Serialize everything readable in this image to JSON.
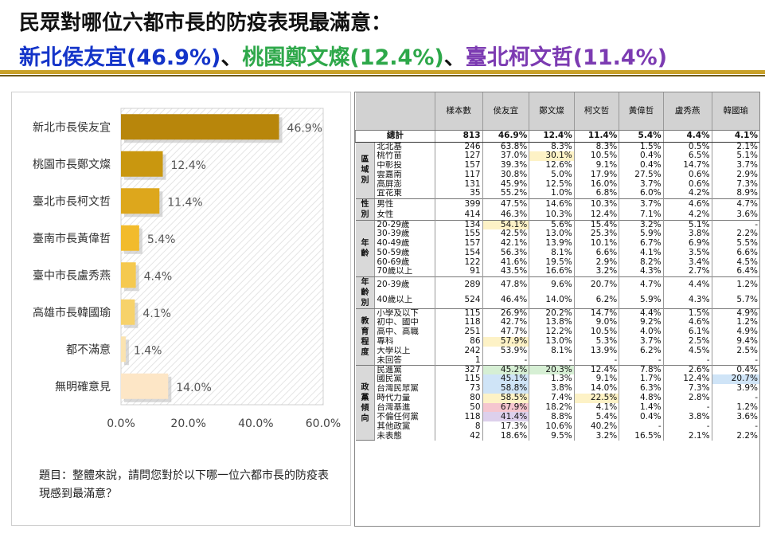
{
  "header": {
    "title_line1": "民眾對哪位六都市長的防疫表現最滿意：",
    "leader1": "新北侯友宜(46.9%)",
    "leader2": "桃園鄭文燦(12.4%)",
    "leader3": "臺北柯文哲(11.4%)",
    "separator": "、",
    "colors": {
      "leader1": "#1434c9",
      "leader2": "#2ea84a",
      "leader3": "#7c3bb2"
    }
  },
  "chart_data": {
    "type": "bar",
    "orientation": "horizontal",
    "categories": [
      "新北市長侯友宜",
      "桃園市長鄭文燦",
      "臺北市長柯文哲",
      "臺南市長黃偉哲",
      "臺中市長盧秀燕",
      "高雄市長韓國瑜",
      "都不滿意",
      "無明確意見"
    ],
    "values": [
      46.9,
      12.4,
      11.4,
      5.4,
      4.4,
      4.1,
      1.4,
      14.0
    ],
    "value_labels": [
      "46.9%",
      "12.4%",
      "11.4%",
      "5.4%",
      "4.4%",
      "4.1%",
      "1.4%",
      "14.0%"
    ],
    "bar_colors": [
      "#b8860b",
      "#c9970f",
      "#dda71c",
      "#f2bb2c",
      "#f5c94f",
      "#f7d26a",
      "#fbe3b0",
      "#fde6c6"
    ],
    "xlim": [
      0,
      60
    ],
    "xticks": [
      "0.0%",
      "20.0%",
      "40.0%",
      "60.0%"
    ],
    "grid": false
  },
  "note": "題目：整體來說，請問您對於以下哪一位六都市長的防疫表現感到最滿意？",
  "table": {
    "headers": [
      "樣本數",
      "侯友宜",
      "鄭文燦",
      "柯文哲",
      "黃偉哲",
      "盧秀燕",
      "韓國瑜"
    ],
    "total": {
      "label": "總計",
      "values": [
        "813",
        "46.9%",
        "12.4%",
        "11.4%",
        "5.4%",
        "4.4%",
        "4.1%"
      ]
    },
    "groups": [
      {
        "name": "區域別",
        "rows": [
          {
            "label": "北北基",
            "values": [
              "246",
              "63.8%",
              "8.3%",
              "8.3%",
              "1.5%",
              "0.5%",
              "2.1%"
            ]
          },
          {
            "label": "桃竹苗",
            "values": [
              "127",
              "37.0%",
              "30.1%",
              "10.5%",
              "0.4%",
              "6.5%",
              "5.1%"
            ],
            "hl": [
              null,
              null,
              "y",
              null,
              null,
              null,
              null
            ]
          },
          {
            "label": "中彰投",
            "values": [
              "157",
              "39.3%",
              "12.6%",
              "9.1%",
              "0.4%",
              "14.7%",
              "3.7%"
            ]
          },
          {
            "label": "雲嘉南",
            "values": [
              "117",
              "30.8%",
              "5.0%",
              "17.9%",
              "27.5%",
              "0.6%",
              "2.9%"
            ]
          },
          {
            "label": "高屏澎",
            "values": [
              "131",
              "45.9%",
              "12.5%",
              "16.0%",
              "3.7%",
              "0.6%",
              "7.3%"
            ]
          },
          {
            "label": "宜花東",
            "values": [
              "35",
              "55.2%",
              "1.0%",
              "6.8%",
              "6.0%",
              "4.2%",
              "8.9%"
            ]
          }
        ]
      },
      {
        "name": "性別",
        "rows": [
          {
            "label": "男性",
            "values": [
              "399",
              "47.5%",
              "14.6%",
              "10.3%",
              "3.7%",
              "4.6%",
              "4.7%"
            ]
          },
          {
            "label": "女性",
            "values": [
              "414",
              "46.3%",
              "10.3%",
              "12.4%",
              "7.1%",
              "4.2%",
              "3.6%"
            ]
          }
        ]
      },
      {
        "name": "年齡",
        "rows": [
          {
            "label": "20-29歲",
            "values": [
              "134",
              "54.1%",
              "5.6%",
              "15.4%",
              "3.2%",
              "5.1%",
              "-"
            ],
            "hl": [
              null,
              "y",
              null,
              null,
              null,
              null,
              null
            ]
          },
          {
            "label": "30-39歲",
            "values": [
              "155",
              "42.5%",
              "13.0%",
              "25.3%",
              "5.9%",
              "3.8%",
              "2.2%"
            ]
          },
          {
            "label": "40-49歲",
            "values": [
              "157",
              "42.1%",
              "13.9%",
              "10.1%",
              "6.7%",
              "6.9%",
              "5.5%"
            ]
          },
          {
            "label": "50-59歲",
            "values": [
              "154",
              "56.3%",
              "8.1%",
              "6.6%",
              "4.1%",
              "3.5%",
              "6.6%"
            ]
          },
          {
            "label": "60-69歲",
            "values": [
              "122",
              "41.6%",
              "19.5%",
              "2.9%",
              "8.2%",
              "3.4%",
              "4.5%"
            ]
          },
          {
            "label": "70歲以上",
            "values": [
              "91",
              "43.5%",
              "16.6%",
              "3.2%",
              "4.3%",
              "2.7%",
              "6.4%"
            ]
          }
        ]
      },
      {
        "name": "年齡別",
        "rows": [
          {
            "label": "20-39歲",
            "values": [
              "289",
              "47.8%",
              "9.6%",
              "20.7%",
              "4.7%",
              "4.4%",
              "1.2%"
            ]
          },
          {
            "label": "40歲以上",
            "values": [
              "524",
              "46.4%",
              "14.0%",
              "6.2%",
              "5.9%",
              "4.3%",
              "5.7%"
            ]
          }
        ]
      },
      {
        "name": "教育程度",
        "rows": [
          {
            "label": "小學及以下",
            "values": [
              "115",
              "26.9%",
              "20.2%",
              "14.7%",
              "4.4%",
              "1.5%",
              "4.9%"
            ]
          },
          {
            "label": "初中、國中",
            "values": [
              "118",
              "42.7%",
              "13.8%",
              "9.0%",
              "9.2%",
              "4.6%",
              "1.2%"
            ]
          },
          {
            "label": "高中、高職",
            "values": [
              "251",
              "47.7%",
              "12.2%",
              "10.5%",
              "4.0%",
              "6.1%",
              "4.9%"
            ]
          },
          {
            "label": "專科",
            "values": [
              "86",
              "57.9%",
              "13.0%",
              "5.3%",
              "3.7%",
              "2.5%",
              "9.4%"
            ],
            "hl": [
              null,
              "y",
              null,
              null,
              null,
              null,
              null
            ]
          },
          {
            "label": "大學以上",
            "values": [
              "242",
              "53.9%",
              "8.1%",
              "13.9%",
              "6.2%",
              "4.5%",
              "2.5%"
            ]
          },
          {
            "label": "未回答",
            "values": [
              "1",
              "-",
              "-",
              "-",
              "-",
              "-",
              "-"
            ]
          }
        ]
      },
      {
        "name": "政黨傾向",
        "rows": [
          {
            "label": "民進黨",
            "values": [
              "327",
              "45.2%",
              "20.3%",
              "12.4%",
              "7.8%",
              "2.6%",
              "0.4%"
            ],
            "hl": [
              null,
              "g",
              "g",
              null,
              null,
              null,
              null
            ]
          },
          {
            "label": "國民黨",
            "values": [
              "115",
              "45.1%",
              "1.3%",
              "9.1%",
              "1.7%",
              "12.4%",
              "20.7%"
            ],
            "hl": [
              null,
              "b",
              null,
              null,
              null,
              null,
              "b"
            ]
          },
          {
            "label": "台灣民眾黨",
            "values": [
              "73",
              "58.8%",
              "3.8%",
              "14.0%",
              "6.3%",
              "7.3%",
              "3.9%"
            ],
            "hl": [
              null,
              "b",
              null,
              null,
              null,
              null,
              null
            ]
          },
          {
            "label": "時代力量",
            "values": [
              "80",
              "58.5%",
              "7.4%",
              "22.5%",
              "4.8%",
              "2.8%",
              "-"
            ],
            "hl": [
              null,
              "y",
              null,
              "y",
              null,
              null,
              null
            ]
          },
          {
            "label": "台灣基進",
            "values": [
              "50",
              "67.9%",
              "18.2%",
              "4.1%",
              "1.4%",
              "-",
              "1.2%"
            ],
            "hl": [
              null,
              "r",
              null,
              null,
              null,
              null,
              null
            ]
          },
          {
            "label": "不偏任何黨",
            "values": [
              "118",
              "41.4%",
              "8.8%",
              "5.4%",
              "0.4%",
              "3.8%",
              "3.6%"
            ],
            "hl": [
              null,
              "p",
              null,
              null,
              null,
              null,
              null
            ]
          },
          {
            "label": "其他政黨",
            "values": [
              "8",
              "17.3%",
              "10.6%",
              "40.2%",
              "-",
              "-",
              "-"
            ]
          },
          {
            "label": "未表態",
            "values": [
              "42",
              "18.6%",
              "9.5%",
              "3.2%",
              "16.5%",
              "2.1%",
              "2.2%"
            ]
          }
        ]
      }
    ]
  }
}
